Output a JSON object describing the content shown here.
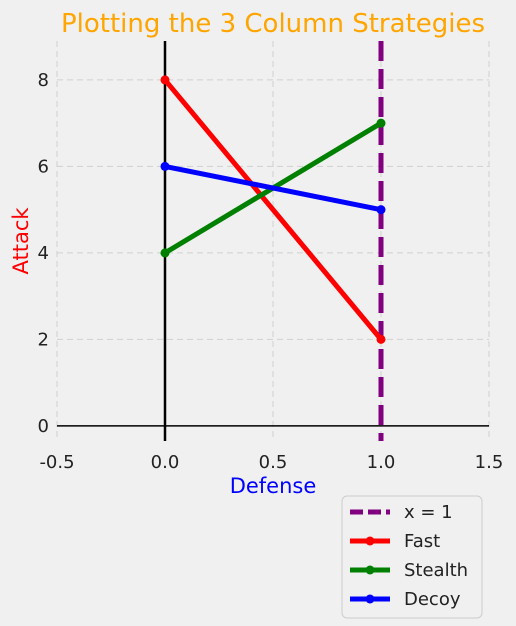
{
  "chart_data": {
    "type": "line",
    "title": "Plotting the 3 Column Strategies",
    "title_color": "#ffa500",
    "xlabel": "Defense",
    "xlabel_color": "#0000ff",
    "ylabel": "Attack",
    "ylabel_color": "#ff0000",
    "xlim": [
      -0.5,
      1.5
    ],
    "ylim": [
      -0.35,
      8.9
    ],
    "xticks": [
      "-0.5",
      "0.0",
      "0.5",
      "1.0",
      "1.5"
    ],
    "yticks": [
      "0",
      "2",
      "4",
      "6",
      "8"
    ],
    "grid": true,
    "legend_position": "bottom-right, outside plot",
    "reference_line": {
      "name": "x = 1",
      "x": 1,
      "style": "dashed",
      "color": "#800080"
    },
    "series": [
      {
        "name": "Fast",
        "color": "#ff0000",
        "x": [
          0,
          1
        ],
        "y": [
          8,
          2
        ]
      },
      {
        "name": "Stealth",
        "color": "#008000",
        "x": [
          0,
          1
        ],
        "y": [
          4,
          7
        ]
      },
      {
        "name": "Decoy",
        "color": "#0000ff",
        "x": [
          0,
          1
        ],
        "y": [
          6,
          5
        ]
      }
    ]
  }
}
